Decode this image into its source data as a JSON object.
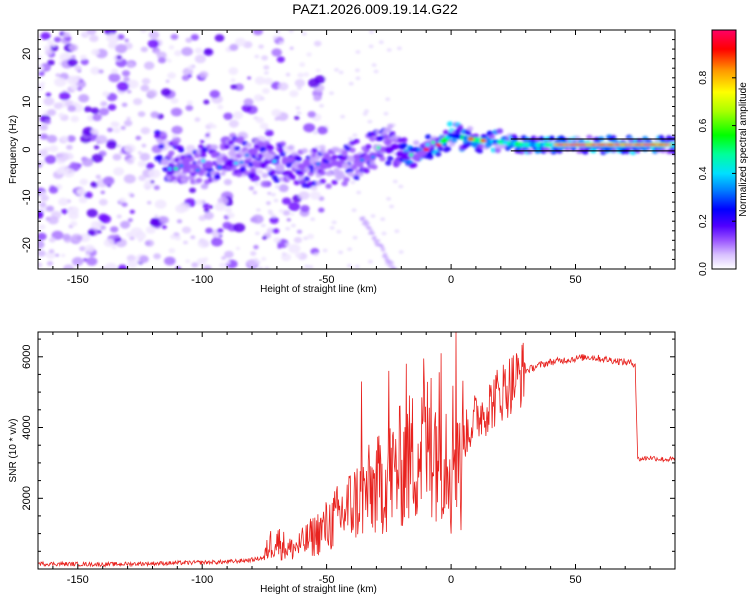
{
  "title": "PAZ1.2026.009.19.14.G22",
  "chart_data": [
    {
      "type": "heatmap",
      "name": "spectrogram",
      "xlabel": "Height of straight line (km)",
      "ylabel": "Frequency (Hz)",
      "xlim": [
        -166,
        90
      ],
      "ylim": [
        -25,
        25
      ],
      "xticks": [
        -150,
        -100,
        -50,
        0,
        50
      ],
      "yticks": [
        -20,
        -10,
        0,
        10,
        20
      ],
      "colorbar": {
        "label": "Normalized spectral amplitude",
        "range": [
          0,
          1
        ],
        "ticks": [
          "0.0",
          "0.2",
          "0.4",
          "0.6",
          "0.8"
        ],
        "tick_values": [
          0.0,
          0.2,
          0.4,
          0.6,
          0.8
        ]
      },
      "colormap": [
        "#ffffff",
        "#e8d8ff",
        "#c8a8ff",
        "#9a55ff",
        "#6a00ff",
        "#2a00ff",
        "#0000ff",
        "#0080ff",
        "#00e0ff",
        "#00ff9a",
        "#00ff00",
        "#9aff00",
        "#ffff00",
        "#ff9900",
        "#ff0000",
        "#ff0066"
      ],
      "features": {
        "scatter_noise_region_km": [
          -166,
          -75
        ],
        "tone_track": [
          {
            "x": -115,
            "f": -2.5
          },
          {
            "x": -100,
            "f": -3
          },
          {
            "x": -85,
            "f": -1.5
          },
          {
            "x": -75,
            "f": -2
          },
          {
            "x": -60,
            "f": -3.5
          },
          {
            "x": -45,
            "f": -4
          },
          {
            "x": -35,
            "f": -1
          },
          {
            "x": -25,
            "f": 1
          },
          {
            "x": -15,
            "f": -1
          },
          {
            "x": -5,
            "f": 1
          },
          {
            "x": 0,
            "f": 3
          },
          {
            "x": 10,
            "f": 2
          },
          {
            "x": 30,
            "f": 1
          },
          {
            "x": 50,
            "f": 1
          },
          {
            "x": 90,
            "f": 1
          }
        ]
      }
    },
    {
      "type": "line",
      "name": "snr",
      "xlabel": "Height of straight line (km)",
      "ylabel": "SNR (10 * v/v)",
      "xlim": [
        -166,
        90
      ],
      "ylim": [
        0,
        6700
      ],
      "xticks": [
        -150,
        -100,
        -50,
        0,
        50
      ],
      "yticks": [
        2000,
        4000,
        6000
      ],
      "color": "#e8221e",
      "series": [
        {
          "name": "SNR",
          "x": [
            -166,
            -140,
            -110,
            -90,
            -80,
            -75,
            -73,
            -70,
            -65,
            -60,
            -55,
            -50,
            -45,
            -40,
            -35,
            -30,
            -25,
            -20,
            -15,
            -10,
            -5,
            0,
            5,
            10,
            15,
            20,
            25,
            30,
            35,
            40,
            45,
            50,
            55,
            60,
            65,
            70,
            74,
            75,
            80,
            85,
            90
          ],
          "y": [
            150,
            130,
            170,
            200,
            260,
            330,
            700,
            800,
            550,
            700,
            950,
            1200,
            1500,
            1800,
            2100,
            2300,
            2600,
            2900,
            3200,
            3500,
            3600,
            3400,
            3700,
            4300,
            4600,
            5000,
            5300,
            5600,
            5750,
            5850,
            5900,
            5950,
            6000,
            5950,
            5900,
            5850,
            5800,
            3100,
            3150,
            3100,
            3100
          ]
        }
      ],
      "spikes": [
        {
          "x": -36,
          "y": 5300
        },
        {
          "x": -25,
          "y": 5600
        },
        {
          "x": -18,
          "y": 5800
        },
        {
          "x": -11,
          "y": 5950
        },
        {
          "x": -4,
          "y": 6100
        },
        {
          "x": 2,
          "y": 6700
        },
        {
          "x": -8,
          "y": 5400
        },
        {
          "x": 0,
          "y": 1000
        },
        {
          "x": 4,
          "y": 1100
        }
      ]
    }
  ]
}
